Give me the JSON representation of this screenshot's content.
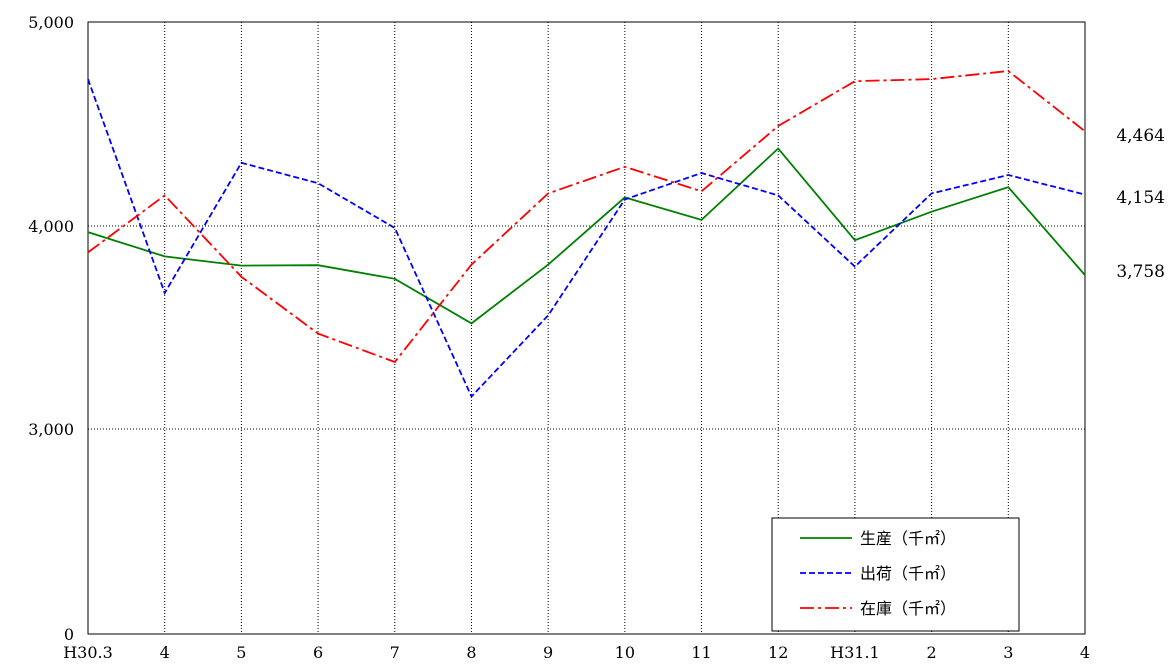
{
  "chart_data": {
    "type": "line",
    "title": "",
    "xlabel": "",
    "ylabel": "",
    "categories": [
      "H30.3",
      "4",
      "5",
      "6",
      "7",
      "8",
      "9",
      "10",
      "11",
      "12",
      "H31.1",
      "2",
      "3",
      "4"
    ],
    "y_tick_labels": [
      "0",
      "3,000",
      "4,000",
      "5,000"
    ],
    "grid": true,
    "legend_position": "bottom-right",
    "series": [
      {
        "name": "生産（千㎡）",
        "color": "#008000",
        "style": "solid",
        "values": [
          3970,
          3850,
          3805,
          3807,
          3740,
          3520,
          3810,
          4140,
          4030,
          4380,
          3930,
          4070,
          4190,
          3758
        ]
      },
      {
        "name": "出荷（千㎡）",
        "color": "#0000ff",
        "style": "dashed",
        "values": [
          4720,
          3670,
          4310,
          4210,
          3990,
          3160,
          3560,
          4130,
          4260,
          4150,
          3800,
          4160,
          4250,
          4154
        ]
      },
      {
        "name": "在庫（千㎡）",
        "color": "#ff0000",
        "style": "dashdot",
        "values": [
          3870,
          4150,
          3750,
          3470,
          3330,
          3810,
          4160,
          4290,
          4170,
          4490,
          4710,
          4720,
          4760,
          4464
        ]
      }
    ],
    "end_labels": [
      "4,464",
      "4,154",
      "3,758"
    ]
  }
}
